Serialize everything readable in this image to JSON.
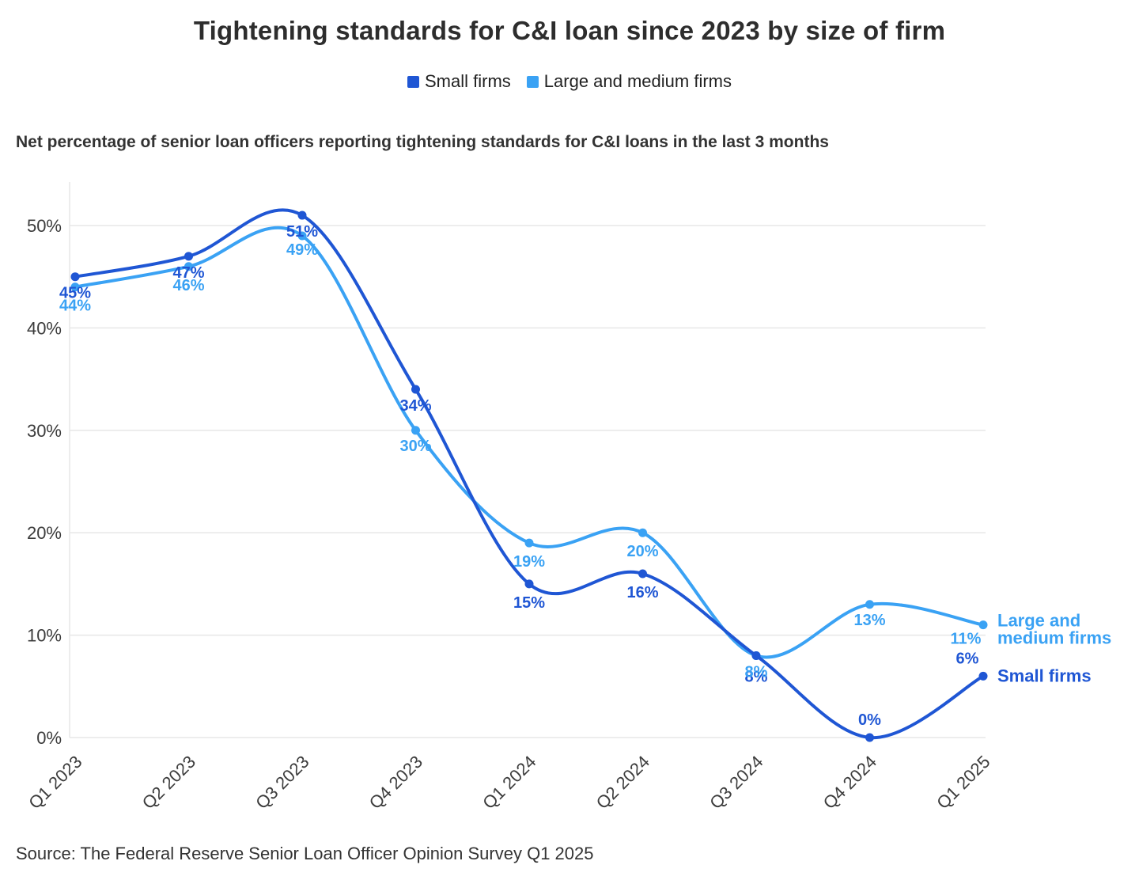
{
  "title": "Tightening standards for C&I loan since 2023 by size of firm",
  "subtitle": "Net percentage of senior loan officers reporting tightening standards for C&I loans in the last 3 months",
  "source": "Source: The Federal Reserve Senior Loan Officer Opinion Survey Q1 2025",
  "legend": [
    {
      "label": "Small firms",
      "color": "#1f56d4"
    },
    {
      "label": "Large and medium firms",
      "color": "#3aa2f4"
    }
  ],
  "chart_data": {
    "type": "line",
    "title": "Tightening standards for C&I loan since 2023 by size of firm",
    "categories": [
      "Q1 2023",
      "Q2 2023",
      "Q3 2023",
      "Q4 2023",
      "Q1 2024",
      "Q2 2024",
      "Q3 2024",
      "Q4 2024",
      "Q1 2025"
    ],
    "series": [
      {
        "name": "Small firms",
        "color": "#1f56d4",
        "values": [
          45,
          47,
          51,
          34,
          15,
          16,
          8,
          0,
          6
        ],
        "labels": [
          "45%",
          "47%",
          "51%",
          "34%",
          "15%",
          "16%",
          "8%",
          "0%",
          "6%"
        ],
        "label_offsets": [
          [
            0,
            27
          ],
          [
            0,
            27
          ],
          [
            0,
            27
          ],
          [
            0,
            27
          ],
          [
            0,
            30
          ],
          [
            0,
            30
          ],
          [
            0,
            33
          ],
          [
            0,
            -16
          ],
          [
            -20,
            -16
          ]
        ],
        "end_label": {
          "lines": [
            "Small firms"
          ],
          "dx": 18,
          "dy": 7
        }
      },
      {
        "name": "Large and medium firms",
        "color": "#3aa2f4",
        "values": [
          44,
          46,
          49,
          30,
          19,
          20,
          8,
          13,
          11
        ],
        "labels": [
          "44%",
          "46%",
          "49%",
          "30%",
          "19%",
          "20%",
          "8%",
          "13%",
          "11%"
        ],
        "label_offsets": [
          [
            0,
            30
          ],
          [
            0,
            30
          ],
          [
            0,
            24
          ],
          [
            0,
            26
          ],
          [
            0,
            30
          ],
          [
            0,
            30
          ],
          [
            0,
            27
          ],
          [
            0,
            26
          ],
          [
            -22,
            24
          ]
        ],
        "end_label": {
          "lines": [
            "Large and",
            "medium firms"
          ],
          "dx": 18,
          "dy": 2
        }
      }
    ],
    "yticks": [
      0,
      10,
      20,
      30,
      40,
      50
    ],
    "ytick_labels": [
      "0%",
      "10%",
      "20%",
      "30%",
      "40%",
      "50%"
    ],
    "ylim": [
      0,
      55
    ],
    "grid": true,
    "legend_position": "top",
    "xlabel": "",
    "ylabel": ""
  }
}
